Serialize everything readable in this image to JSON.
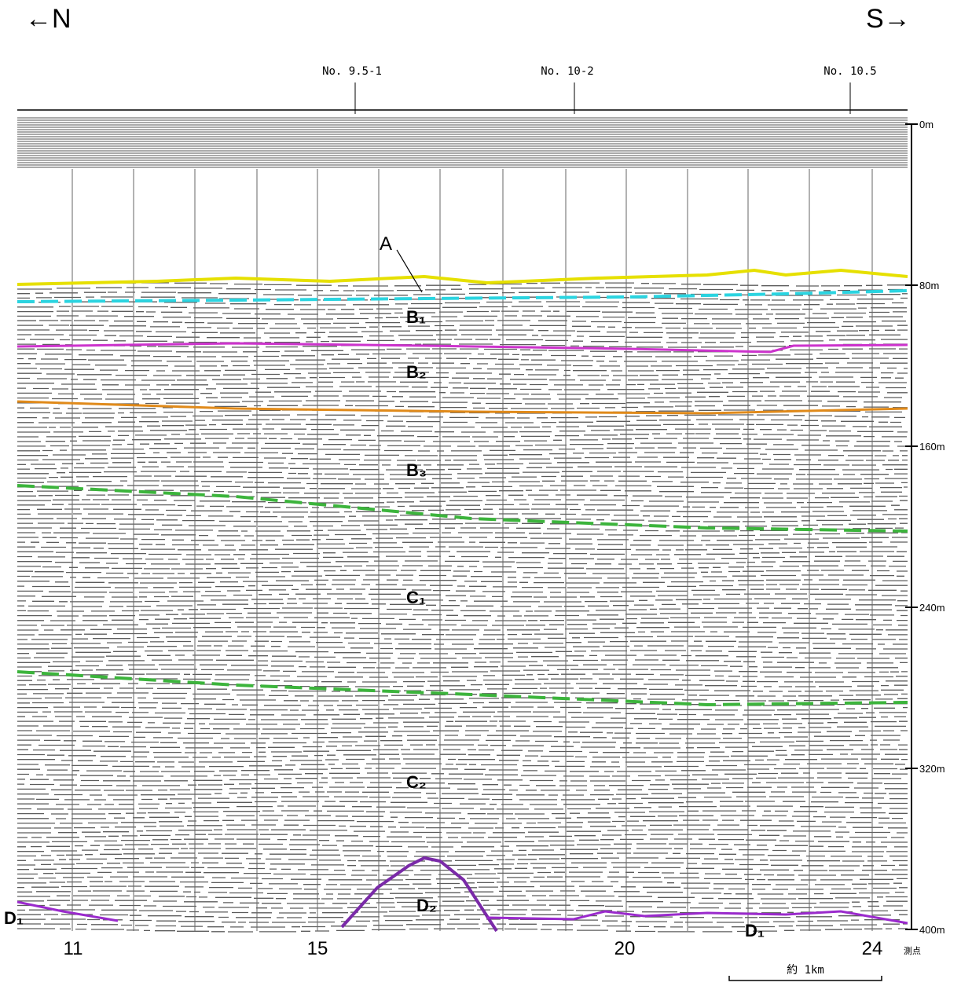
{
  "header": {
    "left": "←N",
    "right": "S→"
  },
  "survey_lines": [
    "No. 9.5-1",
    "No. 10-2",
    "No. 10.5"
  ],
  "depth_labels": [
    "0m",
    "80m",
    "160m",
    "240m",
    "320m",
    "400m"
  ],
  "stations": [
    "11",
    "15",
    "20",
    "24"
  ],
  "station_caption": "測点",
  "scale_label": "約 1km",
  "layers": [
    "A",
    "B₁",
    "B₂",
    "B₃",
    "C₁",
    "C₂",
    "D₂",
    "D₁",
    "D₁"
  ]
}
